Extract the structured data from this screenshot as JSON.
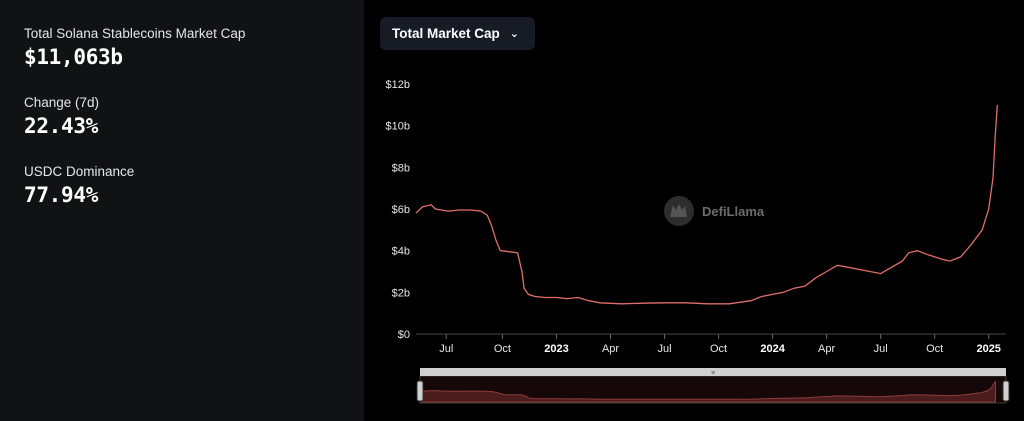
{
  "stats": [
    {
      "label": "Total Solana Stablecoins Market Cap",
      "value": "$11,063b"
    },
    {
      "label": "Change (7d)",
      "value": "22.43%"
    },
    {
      "label": "USDC Dominance",
      "value": "77.94%"
    }
  ],
  "dropdown": {
    "label": "Total Market Cap"
  },
  "watermark": "DefiLlama",
  "chart_data": {
    "type": "line",
    "title": "",
    "xlabel": "",
    "ylabel": "",
    "ylim": [
      0,
      12
    ],
    "y_ticks": [
      "$12b",
      "$10b",
      "$8b",
      "$6b",
      "$4b",
      "$2b",
      "$0"
    ],
    "x_ticks": [
      {
        "t": 2022.49,
        "label": "Jul",
        "bold": false
      },
      {
        "t": 2022.75,
        "label": "Oct",
        "bold": false
      },
      {
        "t": 2023.0,
        "label": "2023",
        "bold": true
      },
      {
        "t": 2023.25,
        "label": "Apr",
        "bold": false
      },
      {
        "t": 2023.5,
        "label": "Jul",
        "bold": false
      },
      {
        "t": 2023.75,
        "label": "Oct",
        "bold": false
      },
      {
        "t": 2024.0,
        "label": "2024",
        "bold": true
      },
      {
        "t": 2024.25,
        "label": "Apr",
        "bold": false
      },
      {
        "t": 2024.5,
        "label": "Jul",
        "bold": false
      },
      {
        "t": 2024.75,
        "label": "Oct",
        "bold": false
      },
      {
        "t": 2025.0,
        "label": "2025",
        "bold": true
      }
    ],
    "x_range": [
      2022.35,
      2025.08
    ],
    "series": [
      {
        "name": "Total Market Cap",
        "color": "#e06f6a",
        "points": [
          [
            2022.35,
            5.8
          ],
          [
            2022.38,
            6.1
          ],
          [
            2022.42,
            6.2
          ],
          [
            2022.44,
            6.0
          ],
          [
            2022.5,
            5.9
          ],
          [
            2022.55,
            5.95
          ],
          [
            2022.6,
            5.95
          ],
          [
            2022.65,
            5.9
          ],
          [
            2022.68,
            5.7
          ],
          [
            2022.7,
            5.2
          ],
          [
            2022.72,
            4.5
          ],
          [
            2022.74,
            4.0
          ],
          [
            2022.78,
            3.95
          ],
          [
            2022.82,
            3.9
          ],
          [
            2022.84,
            3.0
          ],
          [
            2022.85,
            2.2
          ],
          [
            2022.87,
            1.9
          ],
          [
            2022.9,
            1.8
          ],
          [
            2022.95,
            1.75
          ],
          [
            2023.0,
            1.75
          ],
          [
            2023.05,
            1.7
          ],
          [
            2023.1,
            1.75
          ],
          [
            2023.15,
            1.6
          ],
          [
            2023.2,
            1.5
          ],
          [
            2023.3,
            1.45
          ],
          [
            2023.4,
            1.48
          ],
          [
            2023.5,
            1.5
          ],
          [
            2023.6,
            1.5
          ],
          [
            2023.7,
            1.45
          ],
          [
            2023.8,
            1.45
          ],
          [
            2023.9,
            1.6
          ],
          [
            2023.95,
            1.8
          ],
          [
            2024.0,
            1.9
          ],
          [
            2024.05,
            2.0
          ],
          [
            2024.1,
            2.2
          ],
          [
            2024.15,
            2.3
          ],
          [
            2024.2,
            2.7
          ],
          [
            2024.25,
            3.0
          ],
          [
            2024.3,
            3.3
          ],
          [
            2024.35,
            3.2
          ],
          [
            2024.4,
            3.1
          ],
          [
            2024.45,
            3.0
          ],
          [
            2024.5,
            2.9
          ],
          [
            2024.55,
            3.2
          ],
          [
            2024.6,
            3.5
          ],
          [
            2024.63,
            3.9
          ],
          [
            2024.67,
            4.0
          ],
          [
            2024.72,
            3.8
          ],
          [
            2024.78,
            3.6
          ],
          [
            2024.82,
            3.5
          ],
          [
            2024.87,
            3.7
          ],
          [
            2024.92,
            4.3
          ],
          [
            2024.97,
            5.0
          ],
          [
            2025.0,
            6.0
          ],
          [
            2025.02,
            7.5
          ],
          [
            2025.03,
            9.5
          ],
          [
            2025.04,
            11.0
          ]
        ]
      }
    ]
  }
}
